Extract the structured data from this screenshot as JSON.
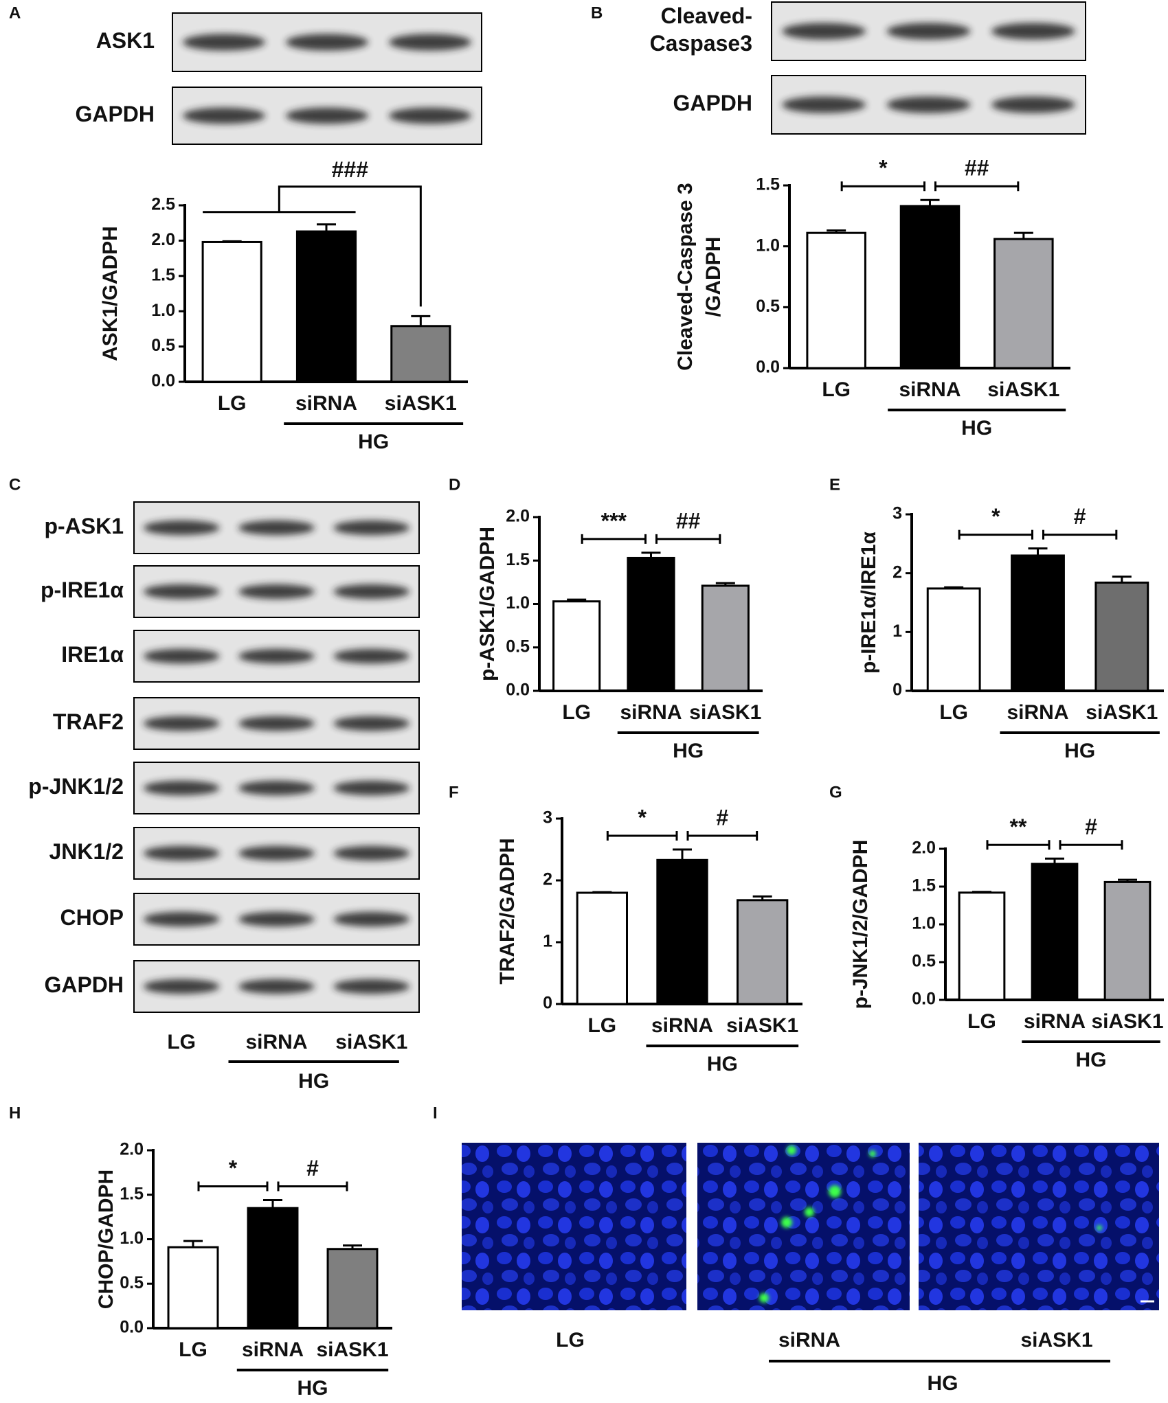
{
  "chart_data": [
    {
      "type": "bar",
      "panel": "A",
      "ylabel": "ASK1/GADPH",
      "categories": [
        "LG",
        "siRNA",
        "siASK1"
      ],
      "group_label": "HG",
      "values": [
        1.98,
        2.13,
        0.79
      ],
      "errors": [
        0.01,
        0.1,
        0.14
      ],
      "colors": [
        "#ffffff",
        "#000000",
        "#808080"
      ],
      "ylim": [
        0,
        2.5
      ],
      "yticks": [
        {
          "value": 0,
          "label": "0.0"
        },
        {
          "value": 0.5,
          "label": "0.5"
        },
        {
          "value": 1,
          "label": "1.0"
        },
        {
          "value": 1.5,
          "label": "1.5"
        },
        {
          "value": 2,
          "label": "2.0"
        },
        2.5
      ],
      "annotations": [
        "###"
      ]
    },
    {
      "type": "bar",
      "panel": "B",
      "ylabel": [
        "Cleaved-Caspase 3",
        "/GADPH"
      ],
      "categories": [
        "LG",
        "siRNA",
        "siASK1"
      ],
      "group_label": "HG",
      "values": [
        1.11,
        1.33,
        1.06
      ],
      "errors": [
        0.02,
        0.05,
        0.05
      ],
      "colors": [
        "#ffffff",
        "#000000",
        "#a6a6aa"
      ],
      "ylim": [
        0,
        1.5
      ],
      "yticks": [
        {
          "value": 0,
          "label": "0.0"
        },
        0.5,
        {
          "value": 1,
          "label": "1.0"
        },
        1.5
      ],
      "annotations": [
        "*",
        "##"
      ]
    },
    {
      "type": "bar",
      "panel": "D",
      "ylabel": "p-ASK1/GADPH",
      "categories": [
        "LG",
        "siRNA",
        "siASK1"
      ],
      "group_label": "HG",
      "values": [
        1.03,
        1.53,
        1.21
      ],
      "errors": [
        0.02,
        0.06,
        0.03
      ],
      "colors": [
        "#ffffff",
        "#000000",
        "#a6a6aa"
      ],
      "ylim": [
        0,
        2
      ],
      "yticks": [
        {
          "value": 0,
          "label": "0.0"
        },
        0.5,
        {
          "value": 1,
          "label": "1.0"
        },
        1.5,
        {
          "value": 2,
          "label": "2.0"
        }
      ],
      "annotations": [
        "***",
        "##"
      ]
    },
    {
      "type": "bar",
      "panel": "E",
      "ylabel": "p-IRE1α/IRE1α",
      "categories": [
        "LG",
        "siRNA",
        "siASK1"
      ],
      "group_label": "HG",
      "values": [
        1.74,
        2.3,
        1.84
      ],
      "errors": [
        0.02,
        0.12,
        0.1
      ],
      "colors": [
        "#ffffff",
        "#000000",
        "#6e6e6e"
      ],
      "ylim": [
        0,
        3
      ],
      "yticks": [
        0,
        1,
        2,
        3
      ],
      "annotations": [
        "*",
        "#"
      ]
    },
    {
      "type": "bar",
      "panel": "F",
      "ylabel": "TRAF2/GADPH",
      "categories": [
        "LG",
        "siRNA",
        "siASK1"
      ],
      "group_label": "HG",
      "values": [
        1.8,
        2.33,
        1.68
      ],
      "errors": [
        0.01,
        0.17,
        0.06
      ],
      "colors": [
        "#ffffff",
        "#000000",
        "#a6a6aa"
      ],
      "ylim": [
        0,
        3
      ],
      "yticks": [
        0,
        1,
        2,
        3
      ],
      "annotations": [
        "*",
        "#"
      ]
    },
    {
      "type": "bar",
      "panel": "G",
      "ylabel": "p-JNK1/2/GADPH",
      "categories": [
        "LG",
        "siRNA",
        "siASK1"
      ],
      "group_label": "HG",
      "values": [
        1.42,
        1.8,
        1.56
      ],
      "errors": [
        0.01,
        0.07,
        0.03
      ],
      "colors": [
        "#ffffff",
        "#000000",
        "#a6a6aa"
      ],
      "ylim": [
        0,
        2
      ],
      "yticks": [
        {
          "value": 0,
          "label": "0.0"
        },
        0.5,
        {
          "value": 1,
          "label": "1.0"
        },
        1.5,
        {
          "value": 2,
          "label": "2.0"
        }
      ],
      "annotations": [
        "**",
        "#"
      ]
    },
    {
      "type": "bar",
      "panel": "H",
      "ylabel": "CHOP/GADPH",
      "categories": [
        "LG",
        "siRNA",
        "siASK1"
      ],
      "group_label": "HG",
      "values": [
        0.91,
        1.35,
        0.89
      ],
      "errors": [
        0.07,
        0.09,
        0.04
      ],
      "colors": [
        "#ffffff",
        "#000000",
        "#7f7f7f"
      ],
      "ylim": [
        0,
        2
      ],
      "yticks": [
        {
          "value": 0,
          "label": "0.0"
        },
        0.5,
        {
          "value": 1,
          "label": "1.0"
        },
        1.5,
        {
          "value": 2,
          "label": "2.0"
        }
      ],
      "annotations": [
        "*",
        "#"
      ]
    }
  ],
  "blots": [
    {
      "labels": [
        [
          "ASK1"
        ],
        [
          "GAPDH"
        ]
      ]
    },
    {
      "labels": [
        [
          "Cleaved-",
          "Caspase3"
        ],
        [
          "GAPDH"
        ]
      ]
    },
    {
      "panel": "C",
      "labels": [
        [
          "p-ASK1"
        ],
        [
          "p-IRE1α"
        ],
        [
          "IRE1α"
        ],
        [
          "TRAF2"
        ],
        [
          "p-JNK1/2"
        ],
        [
          "JNK1/2"
        ],
        [
          "CHOP"
        ],
        [
          "GAPDH"
        ]
      ],
      "categories": [
        "LG",
        "siRNA",
        "siASK1"
      ],
      "group_label": "HG"
    }
  ],
  "micrographs": {
    "panel": "I",
    "categories": [
      "LG",
      "siRNA",
      "siASK1"
    ],
    "group_label": "HG"
  }
}
